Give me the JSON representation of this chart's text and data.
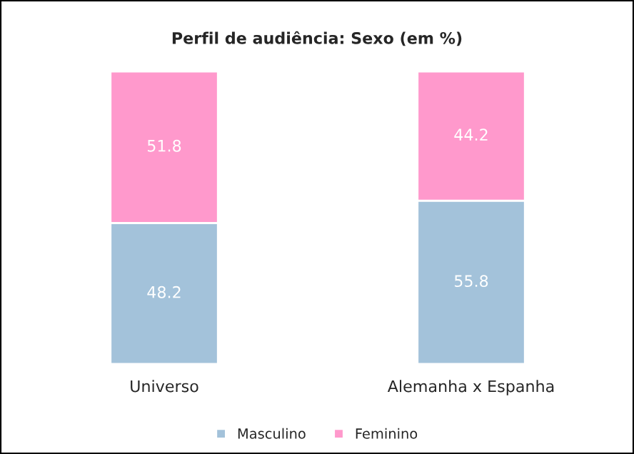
{
  "chart_data": {
    "type": "bar",
    "title": "Perfil de audiência: Sexo (em %)",
    "categories": [
      "Universo",
      "Alemanha x Espanha"
    ],
    "stacked": true,
    "ylim": [
      0,
      100
    ],
    "data_labels": true,
    "legend": "bottom",
    "series": [
      {
        "name": "Masculino",
        "color": "#a3c2da",
        "values": [
          48.2,
          55.8
        ]
      },
      {
        "name": "Feminino",
        "color": "#ff99cc",
        "values": [
          51.8,
          44.2
        ]
      }
    ]
  }
}
